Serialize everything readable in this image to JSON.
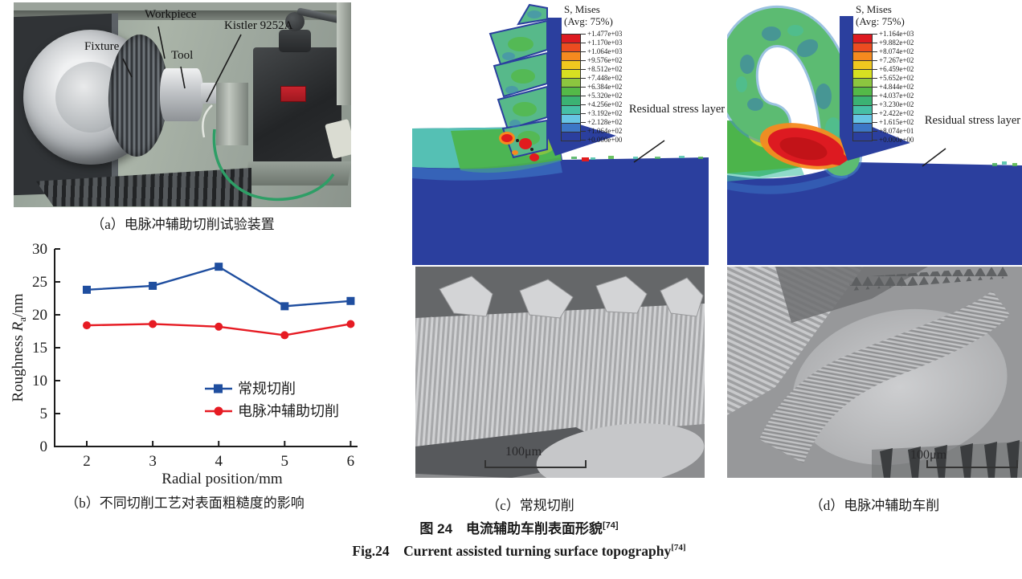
{
  "figure": {
    "caption_zh": "图 24　电流辅助车削表面形貌",
    "ref_zh": "[74]",
    "caption_en": "Fig.24　Current assisted turning surface topography",
    "ref_en": "[74]"
  },
  "panel_a": {
    "caption": "（a）电脉冲辅助切削试验装置",
    "labels": {
      "fixture": "Fixture",
      "workpiece": "Workpiece",
      "tool": "Tool",
      "dynamometer": "Kistler 9252A"
    }
  },
  "panel_b": {
    "caption": "（b）不同切削工艺对表面粗糙度的影响"
  },
  "chart_data": {
    "type": "line",
    "x": [
      2,
      3,
      4,
      5,
      6
    ],
    "series": [
      {
        "name": "常规切削",
        "marker": "square",
        "color": "#1f4e9f",
        "values": [
          23.8,
          24.4,
          27.3,
          21.3,
          22.1
        ]
      },
      {
        "name": "电脉冲辅助切削",
        "marker": "circle",
        "color": "#e61b23",
        "values": [
          18.4,
          18.6,
          18.2,
          16.9,
          18.6
        ]
      }
    ],
    "xlabel": "Radial position/mm",
    "ylabel": "Roughness Ra/nm",
    "ylabel_parts": {
      "prefix": "Roughness ",
      "symbol": "R",
      "sub": "a",
      "suffix": "/nm"
    },
    "xlim": [
      2,
      6
    ],
    "ylim": [
      0,
      30
    ],
    "yticks": [
      0,
      5,
      10,
      15,
      20,
      25,
      30
    ],
    "xticks": [
      2,
      3,
      4,
      5,
      6
    ],
    "legend_position": "center-right",
    "grid": false
  },
  "panel_c": {
    "caption": "（c）常规切削",
    "legend_title1": "S, Mises",
    "legend_title2": "(Avg: 75%)",
    "legend_values": [
      "+1.477e+03",
      "+1.170e+03",
      "+1.064e+03",
      "+9.576e+02",
      "+8.512e+02",
      "+7.448e+02",
      "+6.384e+02",
      "+5.320e+02",
      "+4.256e+02",
      "+3.192e+02",
      "+2.128e+02",
      "+1.064e+02",
      "+0.000e+00"
    ],
    "annotation": "Residual stress layer",
    "scalebar": "100μm"
  },
  "panel_d": {
    "caption": "（d）电脉冲辅助车削",
    "legend_title1": "S, Mises",
    "legend_title2": "(Avg: 75%)",
    "legend_values": [
      "+1.164e+03",
      "+9.882e+02",
      "+8.074e+02",
      "+7.267e+02",
      "+6.459e+02",
      "+5.652e+02",
      "+4.844e+02",
      "+4.037e+02",
      "+3.230e+02",
      "+2.422e+02",
      "+1.615e+02",
      "+8.074e+01",
      "+0.000e+00"
    ],
    "annotation": "Residual stress layer",
    "scalebar": "100μm"
  },
  "colors": {
    "series_blue": "#1f4e9f",
    "series_red": "#e61b23",
    "fem_deep_blue": "#2b3f9e",
    "contour_bands": [
      "#dd1a21",
      "#ec4c20",
      "#f58a1f",
      "#f0c81f",
      "#d7e021",
      "#8cc63f",
      "#54b948",
      "#3bb273",
      "#46bfa6",
      "#67c5e4",
      "#3c77c6",
      "#2b3f9e"
    ]
  }
}
